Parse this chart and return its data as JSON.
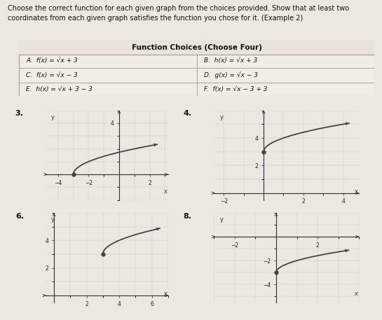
{
  "bg_color": "#ede8df",
  "title_line1": "Choose the correct function for each given graph from the choices provided. Show that at least two",
  "title_line2": "coordinates from each given graph satisfies the function you chose for it. (Example 2)",
  "table_title": "Function Choices (Choose Four)",
  "choices_left": [
    "A.  f(x) = √x + 3",
    "C.  f(x) = √x − 3",
    "E.  h(x) = √x + 3 − 3"
  ],
  "choices_right": [
    "B.  h(x) = √x + 3",
    "D.  g(x) = √x − 3",
    "F.  f(x) = √x − 3 + 3"
  ],
  "graph3": {
    "label": "3.",
    "xlim": [
      -4.8,
      3.2
    ],
    "ylim": [
      -2.0,
      5.0
    ],
    "xticks": [
      -4,
      -2,
      2
    ],
    "yticks": [
      4
    ],
    "start_x": -3.0,
    "end_x": 2.5,
    "dot_x": -3.0,
    "dot_y": 0.0,
    "func": "sqrt_xp3",
    "curve_color": "#444444"
  },
  "graph4": {
    "label": "4.",
    "xlim": [
      -2.5,
      4.8
    ],
    "ylim": [
      -0.5,
      6.0
    ],
    "xticks": [
      -2,
      2,
      4
    ],
    "yticks": [
      2,
      4
    ],
    "start_x": 0.0,
    "end_x": 4.3,
    "dot_x": 0.0,
    "dot_y": 3.0,
    "func": "sqrt_x_p3",
    "curve_color": "#444444"
  },
  "graph6": {
    "label": "6.",
    "xlim": [
      -0.5,
      7.0
    ],
    "ylim": [
      -0.5,
      6.0
    ],
    "xticks": [
      2,
      4,
      6
    ],
    "yticks": [
      2,
      4
    ],
    "start_x": 3.0,
    "end_x": 6.5,
    "dot_x": 3.0,
    "dot_y": 3.0,
    "func": "sqrt_xm3_p3",
    "curve_color": "#444444"
  },
  "graph8": {
    "label": "8.",
    "xlim": [
      -3.0,
      4.0
    ],
    "ylim": [
      -5.5,
      2.0
    ],
    "xticks": [
      -2,
      2
    ],
    "yticks": [
      -4,
      -2
    ],
    "start_x": 0.0,
    "end_x": 3.5,
    "dot_x": 0.0,
    "dot_y": -3.0,
    "func": "sqrt_x_m3",
    "curve_color": "#444444"
  }
}
